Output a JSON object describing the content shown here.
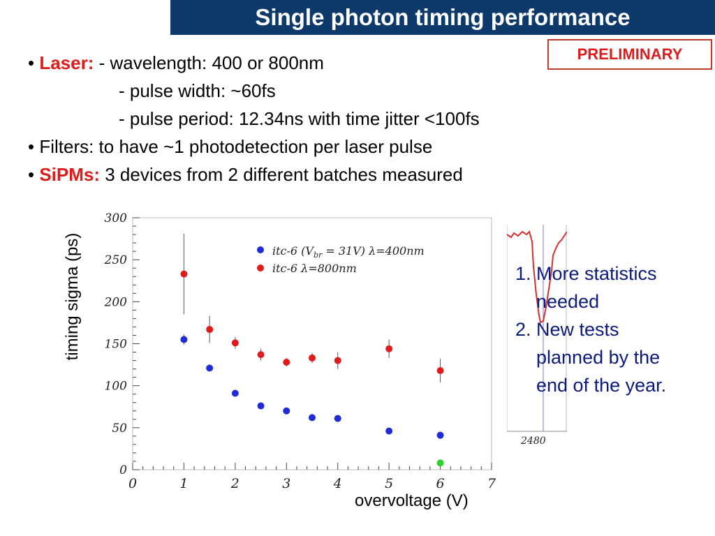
{
  "header": {
    "title": "Single photon timing performance",
    "badge": "PRELIMINARY"
  },
  "bullets": {
    "laser_label": "Laser:",
    "laser_line1": " - wavelength:  400 or 800nm",
    "laser_line2": "- pulse width:  ~60fs",
    "laser_line3": "- pulse period: 12.34ns with time jitter <100fs",
    "filters": "Filters: to have ~1 photodetection per laser pulse",
    "sipms_label": "SiPMs:",
    "sipms_text": " 3 devices from 2 different batches measured"
  },
  "notes": {
    "item1_a": "1. More statistics",
    "item1_b": "needed",
    "item2_a": "2. New tests",
    "item2_b": "planned by the",
    "item2_c": "end of the year."
  },
  "inset": {
    "tick_label": "2480"
  },
  "chart_data": {
    "type": "scatter",
    "xlabel": "overvoltage (V)",
    "ylabel": "timing  sigma (ps)",
    "xlim": [
      0,
      7
    ],
    "ylim": [
      0,
      300
    ],
    "xticks": [
      "0",
      "1",
      "2",
      "3",
      "4",
      "5",
      "6",
      "7"
    ],
    "yticks": [
      "0",
      "50",
      "100",
      "150",
      "200",
      "250",
      "300"
    ],
    "legend_position": "top-center",
    "series": [
      {
        "name": "itc-6 (V",
        "name_sub": "br",
        "name_suffix": " = 31V) λ=400nm",
        "color": "#1f2bd6",
        "x": [
          1,
          1.5,
          2,
          2.5,
          3,
          3.5,
          4,
          5,
          6
        ],
        "y": [
          155,
          121,
          91,
          76,
          70,
          62,
          61,
          46,
          41
        ],
        "err": [
          6,
          3,
          3,
          3,
          3,
          3,
          3,
          3,
          3
        ]
      },
      {
        "name": "itc-6 λ=800nm",
        "color": "#e01b1b",
        "x": [
          1,
          1.5,
          2,
          2.5,
          3,
          3.5,
          4,
          5,
          6
        ],
        "y": [
          233,
          167,
          151,
          137,
          128,
          133,
          130,
          144,
          118
        ],
        "err": [
          48,
          16,
          7,
          7,
          5,
          6,
          10,
          11,
          14
        ]
      },
      {
        "color": "#2fd02f",
        "x": [
          6
        ],
        "y": [
          8
        ],
        "err": [
          0
        ]
      }
    ]
  }
}
